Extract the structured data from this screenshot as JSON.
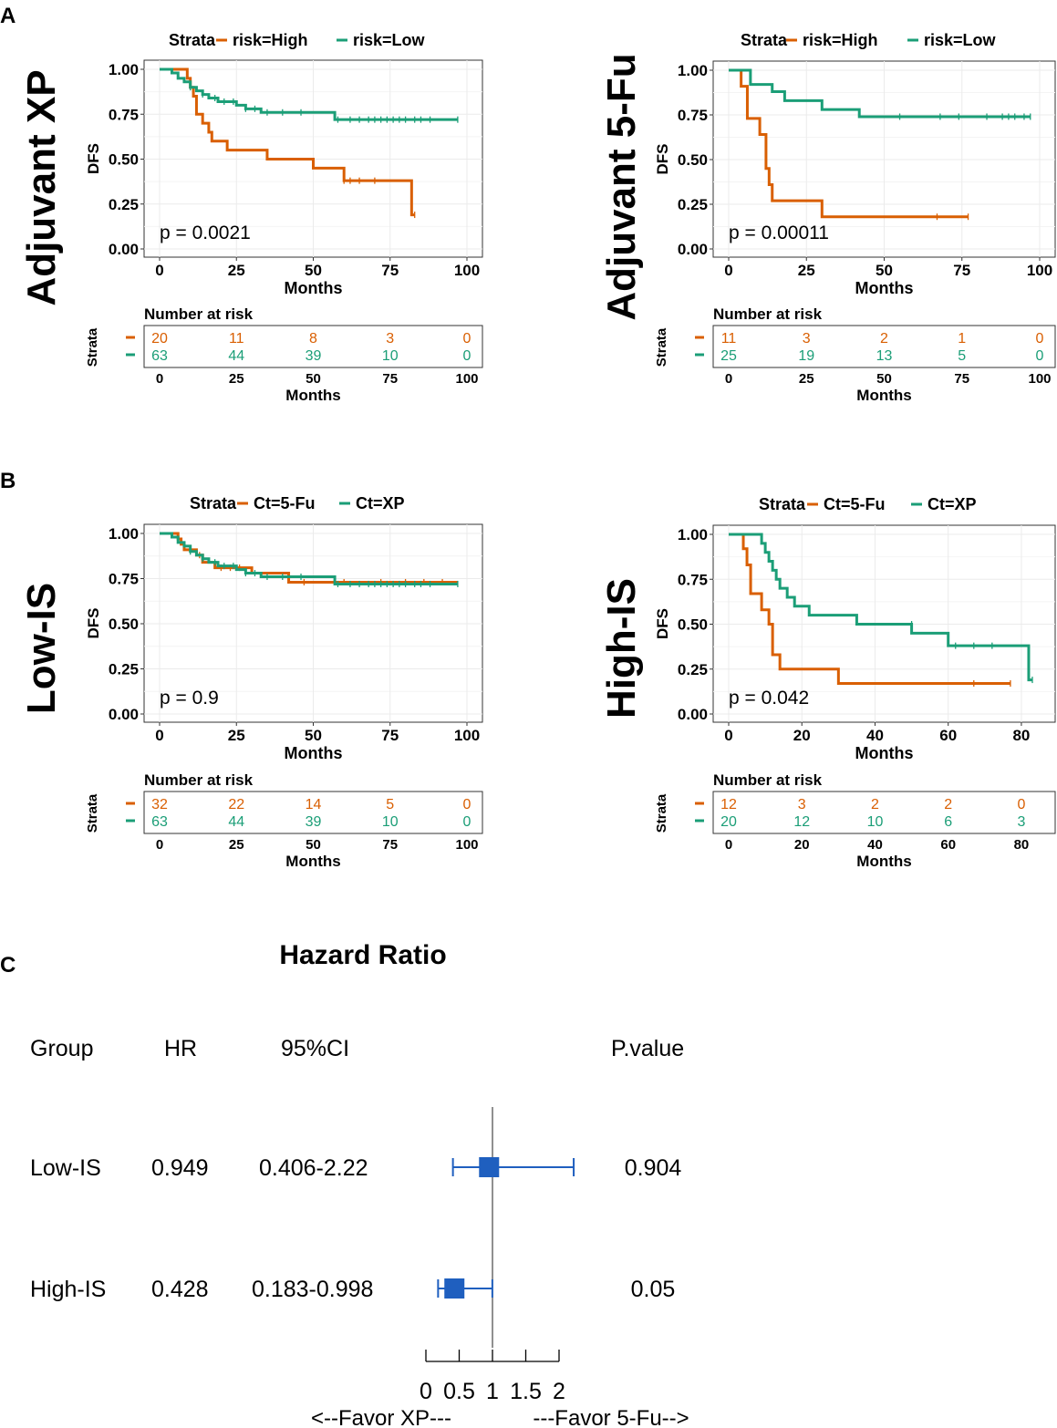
{
  "panels": {
    "A": "A",
    "B": "B",
    "C": "C"
  },
  "colors": {
    "high": "#D95F02",
    "low": "#1B9E77",
    "forest": "#1F5FBF",
    "grid": "#EBEBEB",
    "frame": "#333333"
  },
  "chart_data": [
    {
      "id": "km1",
      "type": "line",
      "title": "Adjuvant XP",
      "legend": {
        "title": "Strata",
        "entries": [
          "risk=High",
          "risk=Low"
        ]
      },
      "xlabel": "Months",
      "ylabel": "DFS",
      "xlim": [
        0,
        100
      ],
      "ylim": [
        0,
        1
      ],
      "xticks": [
        0,
        25,
        50,
        75,
        100
      ],
      "yticks": [
        "0.00",
        "0.25",
        "0.50",
        "0.75",
        "1.00"
      ],
      "pvalue": "p = 0.0021",
      "series": [
        {
          "name": "risk=High",
          "steps": [
            [
              0,
              1
            ],
            [
              8,
              1
            ],
            [
              9,
              0.95
            ],
            [
              10,
              0.9
            ],
            [
              11,
              0.85
            ],
            [
              12,
              0.75
            ],
            [
              14,
              0.7
            ],
            [
              16,
              0.65
            ],
            [
              17,
              0.6
            ],
            [
              22,
              0.55
            ],
            [
              35,
              0.5
            ],
            [
              50,
              0.45
            ],
            [
              60,
              0.38
            ],
            [
              82,
              0.19
            ]
          ],
          "end": 83,
          "censors": [
            [
              60,
              0.38
            ],
            [
              62,
              0.38
            ],
            [
              65,
              0.38
            ],
            [
              70,
              0.38
            ],
            [
              83,
              0.19
            ]
          ]
        },
        {
          "name": "risk=Low",
          "steps": [
            [
              0,
              1
            ],
            [
              4,
              0.98
            ],
            [
              6,
              0.95
            ],
            [
              8,
              0.93
            ],
            [
              10,
              0.9
            ],
            [
              12,
              0.88
            ],
            [
              14,
              0.86
            ],
            [
              16,
              0.84
            ],
            [
              19,
              0.82
            ],
            [
              25,
              0.8
            ],
            [
              28,
              0.78
            ],
            [
              33,
              0.76
            ],
            [
              57,
              0.72
            ]
          ],
          "end": 97,
          "censors": [
            [
              10,
              0.9
            ],
            [
              14,
              0.86
            ],
            [
              18,
              0.84
            ],
            [
              21,
              0.82
            ],
            [
              24,
              0.82
            ],
            [
              28,
              0.78
            ],
            [
              31,
              0.78
            ],
            [
              35,
              0.76
            ],
            [
              40,
              0.76
            ],
            [
              46,
              0.76
            ],
            [
              58,
              0.72
            ],
            [
              62,
              0.72
            ],
            [
              65,
              0.72
            ],
            [
              68,
              0.72
            ],
            [
              70,
              0.72
            ],
            [
              72,
              0.72
            ],
            [
              74,
              0.72
            ],
            [
              76,
              0.72
            ],
            [
              78,
              0.72
            ],
            [
              80,
              0.72
            ],
            [
              83,
              0.72
            ],
            [
              85,
              0.72
            ],
            [
              88,
              0.72
            ],
            [
              97,
              0.72
            ]
          ]
        }
      ],
      "risk_table": {
        "title": "Number at risk",
        "strata_label": "Strata",
        "xlabel": "Months",
        "times": [
          0,
          25,
          50,
          75,
          100
        ],
        "rows": [
          [
            "20",
            "11",
            "8",
            "3",
            "0"
          ],
          [
            "63",
            "44",
            "39",
            "10",
            "0"
          ]
        ]
      }
    },
    {
      "id": "km2",
      "type": "line",
      "title": "Adjuvant 5-Fu",
      "legend": {
        "title": "Strata",
        "entries": [
          "risk=High",
          "risk=Low"
        ]
      },
      "xlabel": "Months",
      "ylabel": "DFS",
      "xlim": [
        0,
        100
      ],
      "ylim": [
        0,
        1
      ],
      "xticks": [
        0,
        25,
        50,
        75,
        100
      ],
      "yticks": [
        "0.00",
        "0.25",
        "0.50",
        "0.75",
        "1.00"
      ],
      "pvalue": "p = 0.00011",
      "series": [
        {
          "name": "risk=High",
          "steps": [
            [
              0,
              1
            ],
            [
              4,
              0.91
            ],
            [
              6,
              0.73
            ],
            [
              10,
              0.64
            ],
            [
              12,
              0.45
            ],
            [
              13,
              0.36
            ],
            [
              14,
              0.27
            ],
            [
              30,
              0.18
            ]
          ],
          "end": 77,
          "censors": [
            [
              67,
              0.18
            ],
            [
              77,
              0.18
            ]
          ]
        },
        {
          "name": "risk=Low",
          "steps": [
            [
              0,
              1
            ],
            [
              7,
              0.92
            ],
            [
              14,
              0.88
            ],
            [
              18,
              0.83
            ],
            [
              30,
              0.78
            ],
            [
              42,
              0.74
            ]
          ],
          "end": 97,
          "censors": [
            [
              55,
              0.74
            ],
            [
              68,
              0.74
            ],
            [
              74,
              0.74
            ],
            [
              83,
              0.74
            ],
            [
              88,
              0.74
            ],
            [
              90,
              0.74
            ],
            [
              92,
              0.74
            ],
            [
              95,
              0.74
            ],
            [
              97,
              0.74
            ]
          ]
        }
      ],
      "risk_table": {
        "title": "Number at risk",
        "strata_label": "Strata",
        "xlabel": "Months",
        "times": [
          0,
          25,
          50,
          75,
          100
        ],
        "rows": [
          [
            "11",
            "3",
            "2",
            "1",
            "0"
          ],
          [
            "25",
            "19",
            "13",
            "5",
            "0"
          ]
        ]
      }
    },
    {
      "id": "km3",
      "type": "line",
      "title": "Low-IS",
      "legend": {
        "title": "Strata",
        "entries": [
          "Ct=5-Fu",
          "Ct=XP"
        ]
      },
      "xlabel": "Months",
      "ylabel": "DFS",
      "xlim": [
        0,
        100
      ],
      "ylim": [
        0,
        1
      ],
      "xticks": [
        0,
        25,
        50,
        75,
        100
      ],
      "yticks": [
        "0.00",
        "0.25",
        "0.50",
        "0.75",
        "1.00"
      ],
      "pvalue": "p = 0.9",
      "series": [
        {
          "name": "Ct=5-Fu",
          "steps": [
            [
              0,
              1
            ],
            [
              6,
              0.97
            ],
            [
              7,
              0.94
            ],
            [
              8,
              0.91
            ],
            [
              12,
              0.88
            ],
            [
              14,
              0.84
            ],
            [
              18,
              0.81
            ],
            [
              30,
              0.78
            ],
            [
              42,
              0.73
            ]
          ],
          "end": 97,
          "censors": [
            [
              13,
              0.88
            ],
            [
              20,
              0.81
            ],
            [
              23,
              0.81
            ],
            [
              26,
              0.81
            ],
            [
              47,
              0.73
            ],
            [
              60,
              0.73
            ],
            [
              72,
              0.73
            ],
            [
              80,
              0.73
            ],
            [
              86,
              0.73
            ],
            [
              92,
              0.73
            ]
          ]
        },
        {
          "name": "Ct=XP",
          "steps": [
            [
              0,
              1
            ],
            [
              4,
              0.98
            ],
            [
              6,
              0.95
            ],
            [
              8,
              0.93
            ],
            [
              10,
              0.9
            ],
            [
              12,
              0.88
            ],
            [
              14,
              0.86
            ],
            [
              16,
              0.84
            ],
            [
              19,
              0.82
            ],
            [
              25,
              0.8
            ],
            [
              28,
              0.78
            ],
            [
              33,
              0.76
            ],
            [
              57,
              0.72
            ]
          ],
          "end": 97,
          "censors": [
            [
              10,
              0.9
            ],
            [
              14,
              0.86
            ],
            [
              18,
              0.84
            ],
            [
              21,
              0.82
            ],
            [
              24,
              0.82
            ],
            [
              28,
              0.78
            ],
            [
              31,
              0.78
            ],
            [
              35,
              0.76
            ],
            [
              40,
              0.76
            ],
            [
              46,
              0.76
            ],
            [
              58,
              0.72
            ],
            [
              62,
              0.72
            ],
            [
              65,
              0.72
            ],
            [
              68,
              0.72
            ],
            [
              70,
              0.72
            ],
            [
              72,
              0.72
            ],
            [
              74,
              0.72
            ],
            [
              76,
              0.72
            ],
            [
              78,
              0.72
            ],
            [
              80,
              0.72
            ],
            [
              83,
              0.72
            ],
            [
              85,
              0.72
            ],
            [
              88,
              0.72
            ],
            [
              97,
              0.72
            ]
          ]
        }
      ],
      "risk_table": {
        "title": "Number at risk",
        "strata_label": "Strata",
        "xlabel": "Months",
        "times": [
          0,
          25,
          50,
          75,
          100
        ],
        "rows": [
          [
            "32",
            "22",
            "14",
            "5",
            "0"
          ],
          [
            "63",
            "44",
            "39",
            "10",
            "0"
          ]
        ]
      }
    },
    {
      "id": "km4",
      "type": "line",
      "title": "High-IS",
      "legend": {
        "title": "Strata",
        "entries": [
          "Ct=5-Fu",
          "Ct=XP"
        ]
      },
      "xlabel": "Months",
      "ylabel": "DFS",
      "xlim": [
        0,
        85
      ],
      "ylim": [
        0,
        1
      ],
      "xticks": [
        0,
        20,
        40,
        60,
        80
      ],
      "yticks": [
        "0.00",
        "0.25",
        "0.50",
        "0.75",
        "1.00"
      ],
      "pvalue": "p = 0.042",
      "series": [
        {
          "name": "Ct=5-Fu",
          "steps": [
            [
              0,
              1
            ],
            [
              4,
              0.92
            ],
            [
              5,
              0.83
            ],
            [
              6,
              0.67
            ],
            [
              9,
              0.58
            ],
            [
              11,
              0.5
            ],
            [
              12,
              0.33
            ],
            [
              14,
              0.25
            ],
            [
              30,
              0.17
            ]
          ],
          "end": 77,
          "censors": [
            [
              67,
              0.17
            ],
            [
              77,
              0.17
            ]
          ]
        },
        {
          "name": "Ct=XP",
          "steps": [
            [
              0,
              1
            ],
            [
              9,
              0.95
            ],
            [
              10,
              0.9
            ],
            [
              11,
              0.85
            ],
            [
              12,
              0.8
            ],
            [
              13,
              0.75
            ],
            [
              14,
              0.7
            ],
            [
              16,
              0.65
            ],
            [
              18,
              0.6
            ],
            [
              22,
              0.55
            ],
            [
              35,
              0.5
            ],
            [
              50,
              0.45
            ],
            [
              60,
              0.38
            ],
            [
              82,
              0.19
            ]
          ],
          "end": 83,
          "censors": [
            [
              50,
              0.5
            ],
            [
              62,
              0.38
            ],
            [
              67,
              0.38
            ],
            [
              72,
              0.38
            ],
            [
              83,
              0.19
            ]
          ]
        }
      ],
      "risk_table": {
        "title": "Number at risk",
        "strata_label": "Strata",
        "xlabel": "Months",
        "times": [
          0,
          20,
          40,
          60,
          80
        ],
        "rows": [
          [
            "12",
            "3",
            "2",
            "2",
            "0"
          ],
          [
            "20",
            "12",
            "10",
            "6",
            "3"
          ]
        ]
      }
    },
    {
      "id": "forest",
      "type": "forest",
      "title": "Hazard Ratio",
      "columns": [
        "Group",
        "HR",
        "95%CI",
        "P.value"
      ],
      "rows": [
        {
          "group": "Low-IS",
          "hr": "0.949",
          "ci": "0.406-2.22",
          "p": "0.904",
          "hr_value": 0.949,
          "lower": 0.406,
          "upper": 2.22
        },
        {
          "group": "High-IS",
          "hr": "0.428",
          "ci": "0.183-0.998",
          "p": "0.05",
          "hr_value": 0.428,
          "lower": 0.183,
          "upper": 0.998
        }
      ],
      "xlim": [
        0,
        2
      ],
      "xticks": [
        "0",
        "0.5",
        "1",
        "1.5",
        "2"
      ],
      "reference": 1,
      "favor_left": "<--Favor XP---",
      "favor_right": "---Favor 5-Fu-->"
    }
  ]
}
